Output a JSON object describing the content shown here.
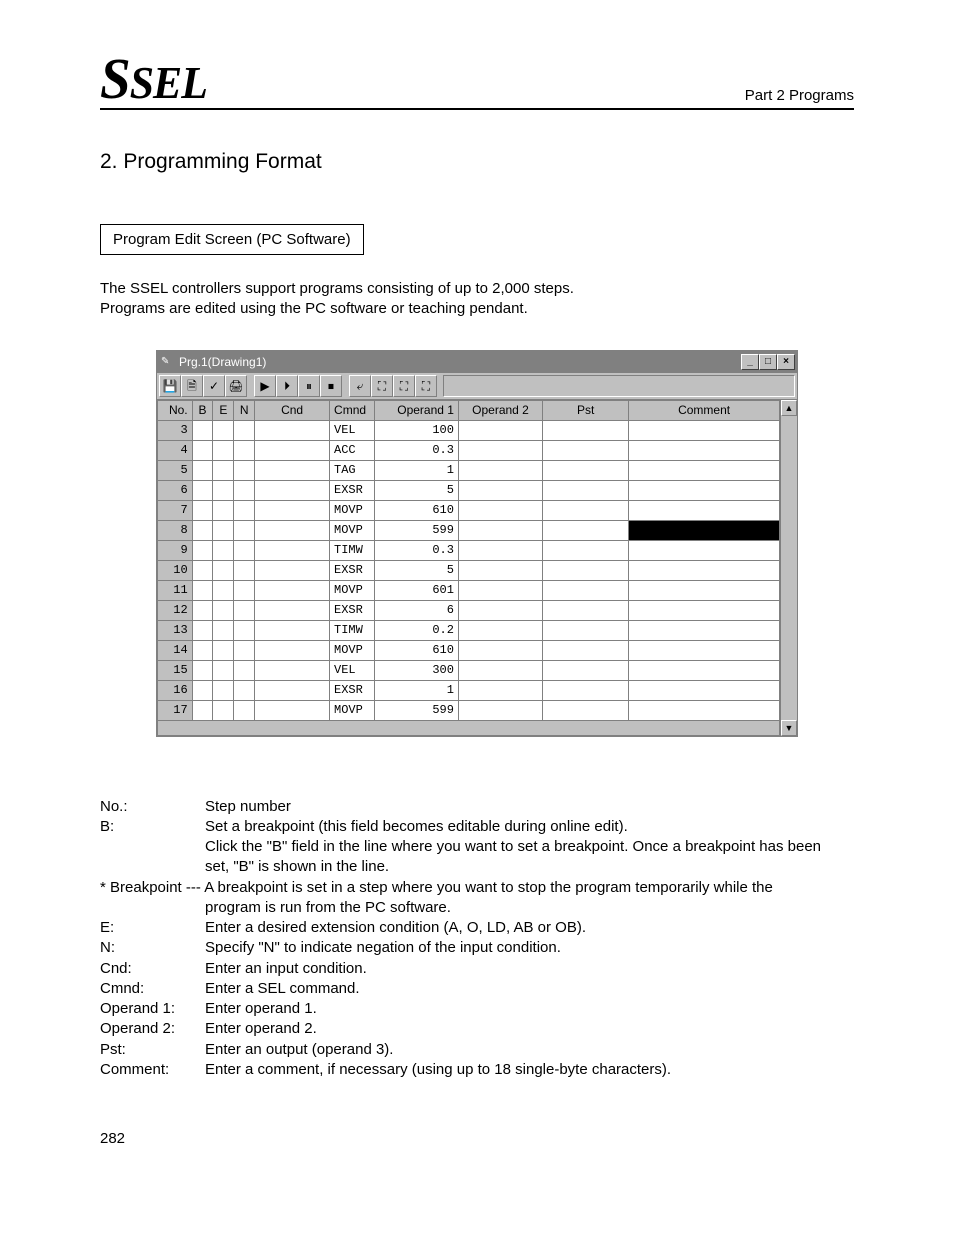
{
  "header": {
    "logo_big": "S",
    "logo_rest": "SEL",
    "right": "Part 2 Programs"
  },
  "section_title": "2.   Programming Format",
  "label_box": "Program Edit Screen (PC Software)",
  "intro_lines": [
    "The SSEL controllers support programs consisting of up to 2,000 steps.",
    "Programs are edited using the PC software or teaching pendant."
  ],
  "window": {
    "title": "Prg.1(Drawing1)",
    "sys_buttons": [
      "_",
      "□",
      "×"
    ],
    "toolbar_icons": [
      "💾",
      "🗎",
      "✓",
      "🖨",
      "▶",
      "⏵",
      "⏸",
      "⏹",
      "⤶",
      "⛶",
      "⛶",
      "⛶"
    ],
    "columns": [
      "No.",
      "B",
      "E",
      "N",
      "Cnd",
      "Cmnd",
      "Operand 1",
      "Operand 2",
      "Pst",
      "Comment"
    ],
    "rows": [
      {
        "no": "3",
        "cmnd": "VEL",
        "op1": "100",
        "black": false
      },
      {
        "no": "4",
        "cmnd": "ACC",
        "op1": "0.3",
        "black": false
      },
      {
        "no": "5",
        "cmnd": "TAG",
        "op1": "1",
        "black": false
      },
      {
        "no": "6",
        "cmnd": "EXSR",
        "op1": "5",
        "black": false
      },
      {
        "no": "7",
        "cmnd": "MOVP",
        "op1": "610",
        "black": false
      },
      {
        "no": "8",
        "cmnd": "MOVP",
        "op1": "599",
        "black": true
      },
      {
        "no": "9",
        "cmnd": "TIMW",
        "op1": "0.3",
        "black": false
      },
      {
        "no": "10",
        "cmnd": "EXSR",
        "op1": "5",
        "black": false
      },
      {
        "no": "11",
        "cmnd": "MOVP",
        "op1": "601",
        "black": false
      },
      {
        "no": "12",
        "cmnd": "EXSR",
        "op1": "6",
        "black": false
      },
      {
        "no": "13",
        "cmnd": "TIMW",
        "op1": "0.2",
        "black": false
      },
      {
        "no": "14",
        "cmnd": "MOVP",
        "op1": "610",
        "black": false
      },
      {
        "no": "15",
        "cmnd": "VEL",
        "op1": "300",
        "black": false
      },
      {
        "no": "16",
        "cmnd": "EXSR",
        "op1": "1",
        "black": false
      },
      {
        "no": "17",
        "cmnd": "MOVP",
        "op1": "599",
        "black": false
      }
    ]
  },
  "definitions": [
    {
      "k": "No.:",
      "v": "Step number"
    },
    {
      "k": "B:",
      "v": "Set a breakpoint (this field becomes editable during online edit)."
    },
    {
      "k": "",
      "v": "Click the \"B\" field in the line where you want to set a breakpoint. Once a breakpoint has been"
    },
    {
      "k": "",
      "v": "set, \"B\" is shown in the line."
    },
    {
      "k": "* Breakpoint --- A breakpoint is set in a step where you want to stop the program temporarily while the",
      "full": true
    },
    {
      "k": "",
      "v": "program is run from the PC software."
    },
    {
      "k": "E:",
      "v": "Enter a desired extension condition (A, O, LD, AB or OB)."
    },
    {
      "k": "N:",
      "v": "Specify \"N\" to indicate negation of the input condition."
    },
    {
      "k": "Cnd:",
      "v": "Enter an input condition."
    },
    {
      "k": "Cmnd:",
      "v": "Enter a SEL command."
    },
    {
      "k": "Operand 1:",
      "v": "Enter operand 1."
    },
    {
      "k": "Operand 2:",
      "v": "Enter operand 2."
    },
    {
      "k": "Pst:",
      "v": "Enter an output (operand 3)."
    },
    {
      "k": "Comment:",
      "v": "Enter a comment, if necessary (using up to 18 single-byte characters)."
    }
  ],
  "page_number": "282"
}
